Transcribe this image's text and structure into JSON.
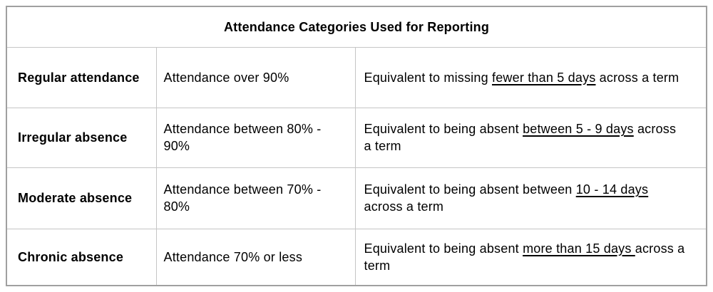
{
  "table": {
    "title": "Attendance Categories Used for Reporting",
    "rows": [
      {
        "category": "Regular attendance",
        "definition": "Attendance over 90%",
        "equiv_pre": "Equivalent to missing ",
        "equiv_underline": "fewer than 5 days",
        "equiv_post": " across a term"
      },
      {
        "category": "Irregular absence",
        "definition": "Attendance between 80% -\n90%",
        "equiv_pre": "Equivalent to being absent ",
        "equiv_underline": "between 5 - 9 days",
        "equiv_post": " across\na term"
      },
      {
        "category": "Moderate absence",
        "definition": "Attendance between 70% -\n80%",
        "equiv_pre": "Equivalent to being absent between ",
        "equiv_underline": "10 - 14 days",
        "equiv_post": "\nacross a term"
      },
      {
        "category": "Chronic absence",
        "definition": "Attendance 70% or less",
        "equiv_pre": "Equivalent to being absent ",
        "equiv_underline": "more than 15 days ",
        "equiv_post": "across a\nterm"
      }
    ]
  },
  "colors": {
    "outer_border": "#a0a0a0",
    "inner_border": "#c5c5c5",
    "text": "#000000",
    "background": "#ffffff"
  }
}
